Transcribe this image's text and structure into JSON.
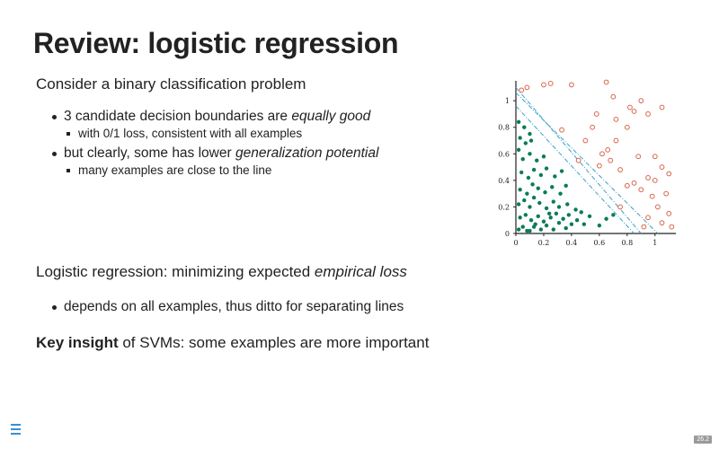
{
  "slide": {
    "title": "Review: logistic regression",
    "lead": "Consider a binary classification problem",
    "bullets": [
      {
        "before": "3 candidate decision boundaries are ",
        "em": "equally good",
        "after": "",
        "sub": "with 0/1 loss, consistent with all examples"
      },
      {
        "before": "but clearly, some has lower ",
        "em": "generalization potential",
        "after": "",
        "sub": "many examples are close to the line"
      }
    ],
    "section2": {
      "before": "Logistic regression: minimizing expected ",
      "em": "empirical loss"
    },
    "bullet3": "depends on all examples, thus ditto for separating lines",
    "insight": {
      "bold": "Key insight",
      "rest": " of SVMs: some examples are more important"
    },
    "slide_number": "26.2"
  },
  "icons": {
    "menu": "menu-icon"
  },
  "colors": {
    "negative": "#0a7b5a",
    "positive": "#d9654a",
    "boundary": "#3aa0c8",
    "menu": "#3a8fd0"
  },
  "chart_data": {
    "type": "scatter",
    "xlim": [
      0,
      1.15
    ],
    "ylim": [
      0,
      1.15
    ],
    "x_ticks": [
      "0",
      "0.2",
      "0.4",
      "0.6",
      "0.8",
      "1"
    ],
    "y_ticks": [
      "0",
      "0.2",
      "0.4",
      "0.6",
      "0.8",
      "1"
    ],
    "series": [
      {
        "marker": "filled",
        "color": "#0a7b5a",
        "points": [
          [
            0.02,
            0.03
          ],
          [
            0.05,
            0.05
          ],
          [
            0.1,
            0.02
          ],
          [
            0.14,
            0.07
          ],
          [
            0.18,
            0.03
          ],
          [
            0.22,
            0.06
          ],
          [
            0.27,
            0.03
          ],
          [
            0.31,
            0.08
          ],
          [
            0.36,
            0.04
          ],
          [
            0.4,
            0.07
          ],
          [
            0.03,
            0.12
          ],
          [
            0.07,
            0.14
          ],
          [
            0.11,
            0.1
          ],
          [
            0.16,
            0.13
          ],
          [
            0.2,
            0.09
          ],
          [
            0.25,
            0.12
          ],
          [
            0.29,
            0.15
          ],
          [
            0.34,
            0.11
          ],
          [
            0.38,
            0.14
          ],
          [
            0.44,
            0.1
          ],
          [
            0.49,
            0.07
          ],
          [
            0.53,
            0.13
          ],
          [
            0.02,
            0.22
          ],
          [
            0.06,
            0.25
          ],
          [
            0.1,
            0.2
          ],
          [
            0.13,
            0.27
          ],
          [
            0.17,
            0.23
          ],
          [
            0.22,
            0.19
          ],
          [
            0.27,
            0.24
          ],
          [
            0.31,
            0.2
          ],
          [
            0.37,
            0.22
          ],
          [
            0.43,
            0.18
          ],
          [
            0.03,
            0.33
          ],
          [
            0.08,
            0.3
          ],
          [
            0.12,
            0.37
          ],
          [
            0.16,
            0.34
          ],
          [
            0.21,
            0.31
          ],
          [
            0.26,
            0.35
          ],
          [
            0.32,
            0.3
          ],
          [
            0.36,
            0.36
          ],
          [
            0.04,
            0.46
          ],
          [
            0.09,
            0.42
          ],
          [
            0.13,
            0.48
          ],
          [
            0.18,
            0.44
          ],
          [
            0.22,
            0.49
          ],
          [
            0.28,
            0.43
          ],
          [
            0.33,
            0.47
          ],
          [
            0.05,
            0.56
          ],
          [
            0.1,
            0.6
          ],
          [
            0.15,
            0.55
          ],
          [
            0.2,
            0.58
          ],
          [
            0.03,
            0.72
          ],
          [
            0.07,
            0.68
          ],
          [
            0.11,
            0.7
          ],
          [
            0.02,
            0.84
          ],
          [
            0.06,
            0.8
          ],
          [
            0.1,
            0.75
          ],
          [
            0.13,
            0.05
          ],
          [
            0.24,
            0.15
          ],
          [
            0.47,
            0.16
          ],
          [
            0.6,
            0.06
          ],
          [
            0.65,
            0.11
          ],
          [
            0.7,
            0.14
          ],
          [
            0.02,
            0.63
          ],
          [
            0.08,
            0.02
          ]
        ]
      },
      {
        "marker": "hollow",
        "color": "#d9654a",
        "points": [
          [
            0.04,
            1.08
          ],
          [
            0.08,
            1.1
          ],
          [
            0.2,
            1.12
          ],
          [
            0.25,
            1.13
          ],
          [
            0.4,
            1.12
          ],
          [
            0.65,
            1.14
          ],
          [
            0.7,
            1.03
          ],
          [
            0.82,
            0.95
          ],
          [
            0.9,
            1.0
          ],
          [
            0.95,
            0.9
          ],
          [
            1.05,
            0.95
          ],
          [
            0.85,
            0.92
          ],
          [
            0.72,
            0.86
          ],
          [
            0.5,
            0.7
          ],
          [
            0.55,
            0.8
          ],
          [
            0.62,
            0.6
          ],
          [
            0.66,
            0.63
          ],
          [
            0.68,
            0.55
          ],
          [
            0.75,
            0.48
          ],
          [
            0.8,
            0.36
          ],
          [
            0.85,
            0.38
          ],
          [
            0.9,
            0.33
          ],
          [
            0.95,
            0.42
          ],
          [
            1.0,
            0.4
          ],
          [
            1.05,
            0.5
          ],
          [
            1.1,
            0.45
          ],
          [
            1.08,
            0.3
          ],
          [
            0.98,
            0.28
          ],
          [
            1.02,
            0.2
          ],
          [
            1.1,
            0.15
          ],
          [
            0.95,
            0.12
          ],
          [
            1.05,
            0.08
          ],
          [
            1.12,
            0.05
          ],
          [
            0.92,
            0.05
          ],
          [
            1.0,
            0.58
          ],
          [
            0.88,
            0.58
          ],
          [
            0.6,
            0.51
          ],
          [
            0.45,
            0.55
          ],
          [
            0.33,
            0.78
          ],
          [
            0.72,
            0.7
          ],
          [
            0.58,
            0.9
          ],
          [
            0.8,
            0.8
          ],
          [
            0.75,
            0.2
          ]
        ]
      }
    ],
    "boundaries": [
      {
        "x1": 0.0,
        "y1": 1.1,
        "x2": 0.9,
        "y2": 0.0
      },
      {
        "x1": 0.0,
        "y1": 1.06,
        "x2": 1.02,
        "y2": 0.0
      },
      {
        "x1": 0.0,
        "y1": 0.96,
        "x2": 0.85,
        "y2": 0.0
      }
    ]
  }
}
